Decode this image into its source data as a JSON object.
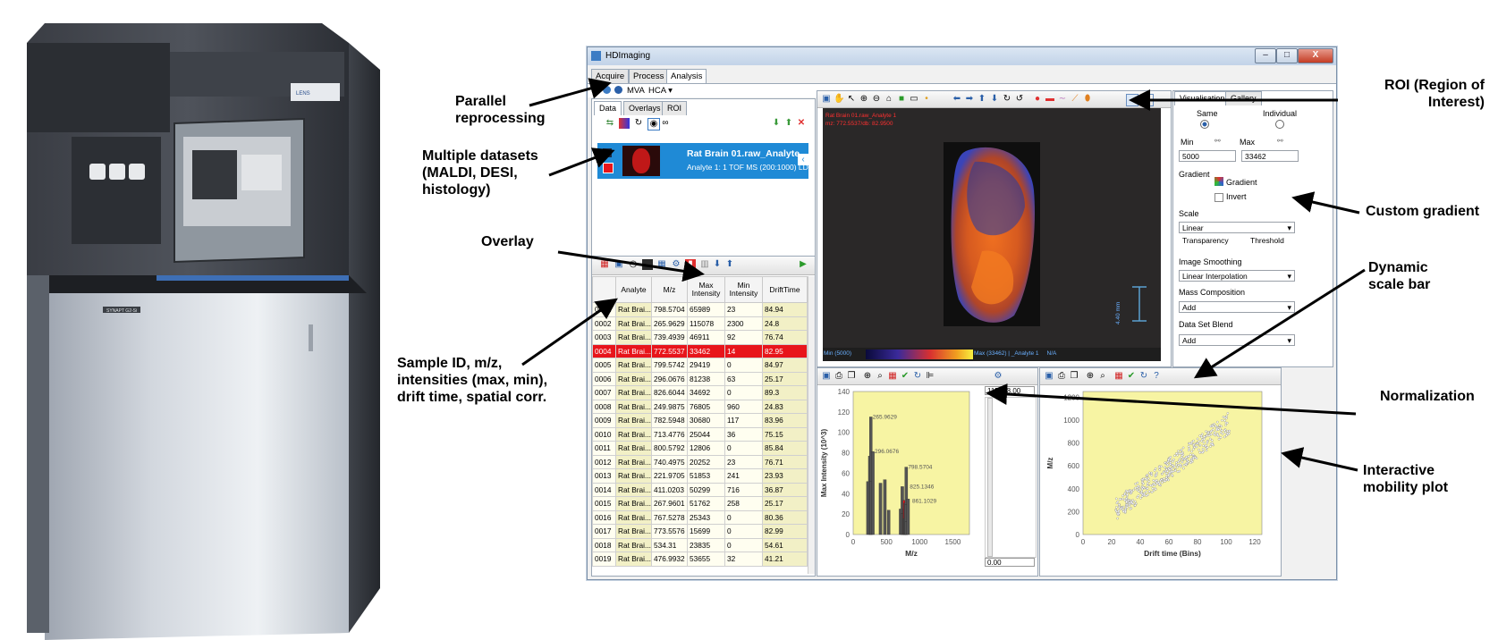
{
  "annotations": {
    "parallel_reprocessing": [
      "Parallel",
      "reprocessing"
    ],
    "multiple_datasets": [
      "Multiple datasets",
      "(MALDI, DESI,",
      "histology)"
    ],
    "overlay": "Overlay",
    "sample_id": [
      "Sample ID, m/z,",
      "intensities (max, min),",
      "drift time, spatial corr."
    ],
    "roi": [
      "ROI  (Region of",
      "Interest)"
    ],
    "custom_gradient": "Custom gradient",
    "dynamic_scale_bar": [
      "Dynamic",
      "scale bar"
    ],
    "normalization": "Normalization",
    "interactive_mobility_plot": [
      "Interactive",
      "mobility plot"
    ]
  },
  "instrument": {
    "badge": "SYNAPT G2-Si",
    "logo": "LENS"
  },
  "app": {
    "title": "HDImaging",
    "window_buttons": [
      "–",
      "□",
      "X"
    ],
    "tabs": [
      "Acquire",
      "Process",
      "Analysis"
    ],
    "ribbon": {
      "mva": "MVA",
      "hca": "HCA ▾"
    },
    "data_panel": {
      "tabs": [
        "Data",
        "Overlays",
        "ROI"
      ],
      "dataset_name": "Rat Brain 01.raw_Analyte",
      "dataset_sub": "Analyte 1: 1 TOF MS (200:1000) LD+"
    },
    "table": {
      "columns": [
        "Analyte",
        "M/z",
        "Max Intensity",
        "Min Intensity",
        "DriftTime"
      ],
      "rows": [
        [
          "0001",
          "Rat Brai...",
          "798.5704",
          "65989",
          "23",
          "84.94"
        ],
        [
          "0002",
          "Rat Brai...",
          "265.9629",
          "115078",
          "2300",
          "24.8"
        ],
        [
          "0003",
          "Rat Brai...",
          "739.4939",
          "46911",
          "92",
          "76.74"
        ],
        [
          "0004",
          "Rat Brai...",
          "772.5537",
          "33462",
          "14",
          "82.95"
        ],
        [
          "0005",
          "Rat Brai...",
          "799.5742",
          "29419",
          "0",
          "84.97"
        ],
        [
          "0006",
          "Rat Brai...",
          "296.0676",
          "81238",
          "63",
          "25.17"
        ],
        [
          "0007",
          "Rat Brai...",
          "826.6044",
          "34692",
          "0",
          "89.3"
        ],
        [
          "0008",
          "Rat Brai...",
          "249.9875",
          "76805",
          "960",
          "24.83"
        ],
        [
          "0009",
          "Rat Brai...",
          "782.5948",
          "30680",
          "117",
          "83.96"
        ],
        [
          "0010",
          "Rat Brai...",
          "713.4776",
          "25044",
          "36",
          "75.15"
        ],
        [
          "0011",
          "Rat Brai...",
          "800.5792",
          "12806",
          "0",
          "85.84"
        ],
        [
          "0012",
          "Rat Brai...",
          "740.4975",
          "20252",
          "23",
          "76.71"
        ],
        [
          "0013",
          "Rat Brai...",
          "221.9705",
          "51853",
          "241",
          "23.93"
        ],
        [
          "0014",
          "Rat Brai...",
          "411.0203",
          "50299",
          "716",
          "36.87"
        ],
        [
          "0015",
          "Rat Brai...",
          "267.9601",
          "51762",
          "258",
          "25.17"
        ],
        [
          "0016",
          "Rat Brai...",
          "767.5278",
          "25343",
          "0",
          "80.36"
        ],
        [
          "0017",
          "Rat Brai...",
          "773.5576",
          "15699",
          "0",
          "82.99"
        ],
        [
          "0018",
          "Rat Brai...",
          "534.31",
          "23835",
          "0",
          "54.61"
        ],
        [
          "0019",
          "Rat Brai...",
          "476.9932",
          "53655",
          "32",
          "41.21"
        ]
      ],
      "selected_row": 3
    },
    "viewer": {
      "label1": "Rat Brain 01.raw_Analyte 1",
      "label2": "mz: 772.5537/db: 82.9500",
      "min_label": "Min (5000)",
      "max_label": "Max (33462) | _Analyte 1     N/A",
      "scale_label": "4.40 mm"
    },
    "right_panel": {
      "tabs": [
        "Visualisation",
        "Gallery"
      ],
      "same": "Same",
      "individual": "Individual",
      "min": "Min",
      "max": "Max",
      "min_value": "5000",
      "max_value": "33462",
      "gradient_label": "Gradient",
      "gradient_button": "Gradient",
      "invert": "Invert",
      "scale_label": "Scale",
      "scale_value": "Linear",
      "transparency": "Transparency",
      "threshold": "Threshold",
      "smoothing_label": "Image Smoothing",
      "smoothing_value": "Linear Interpolation",
      "mass_comp": "Mass Composition",
      "mass_comp_value": "Add",
      "blend": "Data Set Blend",
      "blend_value": "Add"
    },
    "spectrum_side": {
      "top": "115078.00",
      "bottom": "0.00"
    }
  },
  "chart_data": [
    {
      "type": "bar",
      "title": "",
      "xlabel": "M/z",
      "ylabel": "Max Intensity (10^3)",
      "xlim": [
        0,
        1750
      ],
      "ylim": [
        0,
        140
      ],
      "xticks": [
        0,
        500,
        1000,
        1500
      ],
      "yticks": [
        0,
        20,
        40,
        60,
        80,
        100,
        120,
        140
      ],
      "x": [
        221.9705,
        249.9875,
        265.9629,
        267.9601,
        296.0676,
        411.0203,
        476.9932,
        534.31,
        713.4776,
        739.4939,
        740.4975,
        767.5278,
        772.5537,
        773.5576,
        782.5948,
        798.5704,
        799.5742,
        800.5792,
        826.6044
      ],
      "values": [
        51.9,
        76.8,
        115.1,
        51.8,
        81.2,
        50.3,
        53.7,
        23.8,
        25.0,
        46.9,
        20.3,
        25.3,
        33.5,
        15.7,
        30.7,
        66.0,
        29.4,
        12.8,
        34.7
      ],
      "peak_labels": [
        {
          "x": 265.9629,
          "y": 115.1,
          "text": "265.9629"
        },
        {
          "x": 296.0676,
          "y": 81.2,
          "text": "296.0676"
        },
        {
          "x": 798.5704,
          "y": 66.0,
          "text": "798.5704"
        },
        {
          "x": 825.1346,
          "y": 47.0,
          "text": "825.1346"
        },
        {
          "x": 861.1029,
          "y": 33.0,
          "text": "861.1029"
        }
      ]
    },
    {
      "type": "scatter",
      "title": "",
      "xlabel": "Drift time (Bins)",
      "ylabel": "M/z",
      "xlim": [
        0,
        125
      ],
      "ylim": [
        0,
        1250
      ],
      "xticks": [
        0,
        20,
        40,
        60,
        80,
        100,
        120
      ],
      "yticks": [
        0,
        200,
        400,
        600,
        800,
        1000,
        1200
      ],
      "trend": {
        "x_range": [
          23,
          103
        ],
        "y_at_xmin": 220,
        "y_at_xmax": 985,
        "band": 95
      }
    }
  ],
  "colors": {
    "selection_blue": "#1f8ad6",
    "selected_row_red": "#e8151b",
    "plot_yellow": "#f7f4a3",
    "bar_gray": "#555555"
  }
}
